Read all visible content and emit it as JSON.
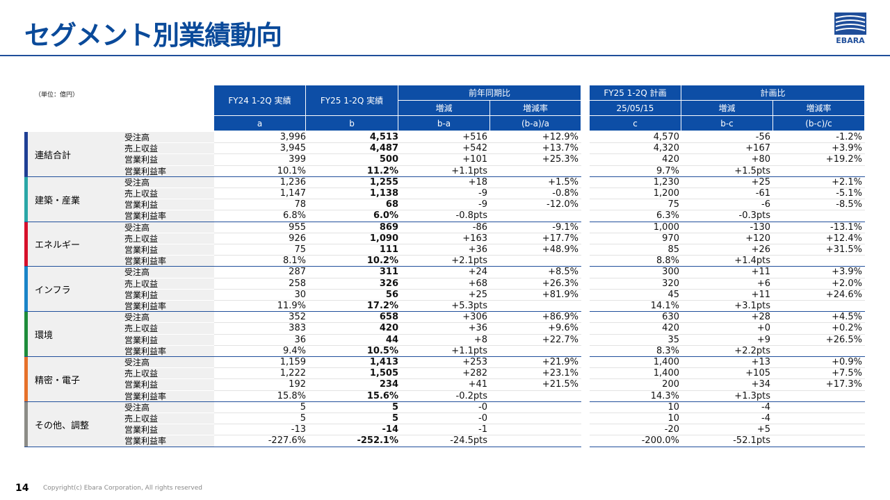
{
  "title": "セグメント別業績動向",
  "logo": "EBARA",
  "unit": "（単位：億円）",
  "header": {
    "fy24": "FY24 1-2Q 実績",
    "fy25": "FY25 1-2Q 実績",
    "yoy": "前年同期比",
    "yoy_diff": "増減",
    "yoy_rate": "増減率",
    "plan": "FY25 1-2Q 計画",
    "plan_date": "25/05/15",
    "plan_cmp": "計画比",
    "plan_diff": "増減",
    "plan_rate": "増減率",
    "col_a": "a",
    "col_b": "b",
    "col_ba": "b-a",
    "col_ba_rate": "(b-a)/a",
    "col_c": "c",
    "col_bc": "b-c",
    "col_bc_rate": "(b-c)/c"
  },
  "segments": [
    {
      "name": "連結合計",
      "color": "#1f3f94",
      "rows": [
        {
          "metric": "受注高",
          "values": [
            "3,996",
            "4,513",
            "+516",
            "+12.9%",
            "4,570",
            "-56",
            "-1.2%"
          ]
        },
        {
          "metric": "売上収益",
          "values": [
            "3,945",
            "4,487",
            "+542",
            "+13.7%",
            "4,320",
            "+167",
            "+3.9%"
          ]
        },
        {
          "metric": "営業利益",
          "values": [
            "399",
            "500",
            "+101",
            "+25.3%",
            "420",
            "+80",
            "+19.2%"
          ]
        },
        {
          "metric": "営業利益率",
          "values": [
            "10.1%",
            "11.2%",
            "+1.1pts",
            null,
            "9.7%",
            "+1.5pts",
            null
          ]
        }
      ]
    },
    {
      "name": "建築・産業",
      "color": "#2aa7a7",
      "rows": [
        {
          "metric": "受注高",
          "values": [
            "1,236",
            "1,255",
            "+18",
            "+1.5%",
            "1,230",
            "+25",
            "+2.1%"
          ]
        },
        {
          "metric": "売上収益",
          "values": [
            "1,147",
            "1,138",
            "-9",
            "-0.8%",
            "1,200",
            "-61",
            "-5.1%"
          ]
        },
        {
          "metric": "営業利益",
          "values": [
            "78",
            "68",
            "-9",
            "-12.0%",
            "75",
            "-6",
            "-8.5%"
          ]
        },
        {
          "metric": "営業利益率",
          "values": [
            "6.8%",
            "6.0%",
            "-0.8pts",
            null,
            "6.3%",
            "-0.3pts",
            null
          ]
        }
      ]
    },
    {
      "name": "エネルギー",
      "color": "#d6102a",
      "rows": [
        {
          "metric": "受注高",
          "values": [
            "955",
            "869",
            "-86",
            "-9.1%",
            "1,000",
            "-130",
            "-13.1%"
          ]
        },
        {
          "metric": "売上収益",
          "values": [
            "926",
            "1,090",
            "+163",
            "+17.7%",
            "970",
            "+120",
            "+12.4%"
          ]
        },
        {
          "metric": "営業利益",
          "values": [
            "75",
            "111",
            "+36",
            "+48.9%",
            "85",
            "+26",
            "+31.5%"
          ]
        },
        {
          "metric": "営業利益率",
          "values": [
            "8.1%",
            "10.2%",
            "+2.1pts",
            null,
            "8.8%",
            "+1.4pts",
            null
          ]
        }
      ]
    },
    {
      "name": "インフラ",
      "color": "#1a84c7",
      "rows": [
        {
          "metric": "受注高",
          "values": [
            "287",
            "311",
            "+24",
            "+8.5%",
            "300",
            "+11",
            "+3.9%"
          ]
        },
        {
          "metric": "売上収益",
          "values": [
            "258",
            "326",
            "+68",
            "+26.3%",
            "320",
            "+6",
            "+2.0%"
          ]
        },
        {
          "metric": "営業利益",
          "values": [
            "30",
            "56",
            "+25",
            "+81.9%",
            "45",
            "+11",
            "+24.6%"
          ]
        },
        {
          "metric": "営業利益率",
          "values": [
            "11.9%",
            "17.2%",
            "+5.3pts",
            null,
            "14.1%",
            "+3.1pts",
            null
          ]
        }
      ]
    },
    {
      "name": "環境",
      "color": "#1e8c3a",
      "rows": [
        {
          "metric": "受注高",
          "values": [
            "352",
            "658",
            "+306",
            "+86.9%",
            "630",
            "+28",
            "+4.5%"
          ]
        },
        {
          "metric": "売上収益",
          "values": [
            "383",
            "420",
            "+36",
            "+9.6%",
            "420",
            "+0",
            "+0.2%"
          ]
        },
        {
          "metric": "営業利益",
          "values": [
            "36",
            "44",
            "+8",
            "+22.7%",
            "35",
            "+9",
            "+26.5%"
          ]
        },
        {
          "metric": "営業利益率",
          "values": [
            "9.4%",
            "10.5%",
            "+1.1pts",
            null,
            "8.3%",
            "+2.2pts",
            null
          ]
        }
      ]
    },
    {
      "name": "精密・電子",
      "color": "#e6712a",
      "rows": [
        {
          "metric": "受注高",
          "values": [
            "1,159",
            "1,413",
            "+253",
            "+21.9%",
            "1,400",
            "+13",
            "+0.9%"
          ]
        },
        {
          "metric": "売上収益",
          "values": [
            "1,222",
            "1,505",
            "+282",
            "+23.1%",
            "1,400",
            "+105",
            "+7.5%"
          ]
        },
        {
          "metric": "営業利益",
          "values": [
            "192",
            "234",
            "+41",
            "+21.5%",
            "200",
            "+34",
            "+17.3%"
          ]
        },
        {
          "metric": "営業利益率",
          "values": [
            "15.8%",
            "15.6%",
            "-0.2pts",
            null,
            "14.3%",
            "+1.3pts",
            null
          ]
        }
      ]
    },
    {
      "name": "その他、調整",
      "color": "#8c8c86",
      "rows": [
        {
          "metric": "受注高",
          "values": [
            "5",
            "5",
            "-0",
            null,
            "10",
            "-4",
            null
          ]
        },
        {
          "metric": "売上収益",
          "values": [
            "5",
            "5",
            "-0",
            null,
            "10",
            "-4",
            null
          ]
        },
        {
          "metric": "営業利益",
          "values": [
            "-13",
            "-14",
            "-1",
            null,
            "-20",
            "+5",
            null
          ]
        },
        {
          "metric": "営業利益率",
          "values": [
            "-227.6%",
            "-252.1%",
            "-24.5pts",
            null,
            "-200.0%",
            "-52.1pts",
            null
          ]
        }
      ]
    }
  ],
  "footer": {
    "page": "14",
    "copyright": "Copyright(c) Ebara Corporation, All rights reserved"
  }
}
